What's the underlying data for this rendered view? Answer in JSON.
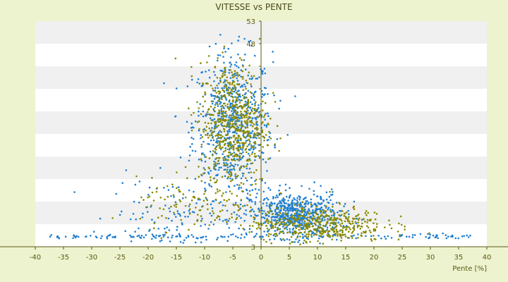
{
  "chart_data": {
    "type": "scatter",
    "title": "VITESSE vs PENTE",
    "xlabel": "Pente [%]",
    "ylabel": "",
    "xlim": [
      -40,
      40
    ],
    "ylim": [
      3,
      53
    ],
    "x_ticks": [
      -40,
      -35,
      -30,
      -25,
      -20,
      -15,
      -10,
      -5,
      0,
      5,
      10,
      15,
      20,
      25,
      30,
      35,
      40
    ],
    "y_ticks": [
      3,
      8,
      13,
      18,
      23,
      28,
      33,
      38,
      43,
      48,
      53
    ],
    "y_ticks_labeled": [
      3,
      48,
      53
    ],
    "grid": "horizontal alternating bands",
    "legend": "none",
    "series": [
      {
        "color": "#1f7fd0",
        "clusters": [
          {
            "x_center": -5,
            "x_spread": 3.5,
            "y_center": 30,
            "y_spread": 8,
            "count": 700
          },
          {
            "x_center": 6,
            "x_spread": 4,
            "y_center": 10,
            "y_spread": 2.5,
            "count": 650
          },
          {
            "x_center": -15,
            "x_spread": 6,
            "y_center": 10,
            "y_spread": 4,
            "count": 120
          },
          {
            "x_center": 0,
            "x_spread": 38,
            "y_center": 5.2,
            "y_spread": 0.3,
            "count": 160
          }
        ]
      },
      {
        "color": "#8a8a00",
        "clusters": [
          {
            "x_center": -5,
            "x_spread": 3,
            "y_center": 30,
            "y_spread": 7,
            "count": 600
          },
          {
            "x_center": 10,
            "x_spread": 6,
            "y_center": 8,
            "y_spread": 2,
            "count": 450
          },
          {
            "x_center": -12,
            "x_spread": 5,
            "y_center": 12,
            "y_spread": 3,
            "count": 100
          }
        ]
      }
    ],
    "colors": {
      "background": "#eef3cf",
      "plot_band_light": "#ffffff",
      "plot_band_dark": "#f0f0f0",
      "axis": "#5a5a14",
      "text": "#5a5a14"
    }
  }
}
